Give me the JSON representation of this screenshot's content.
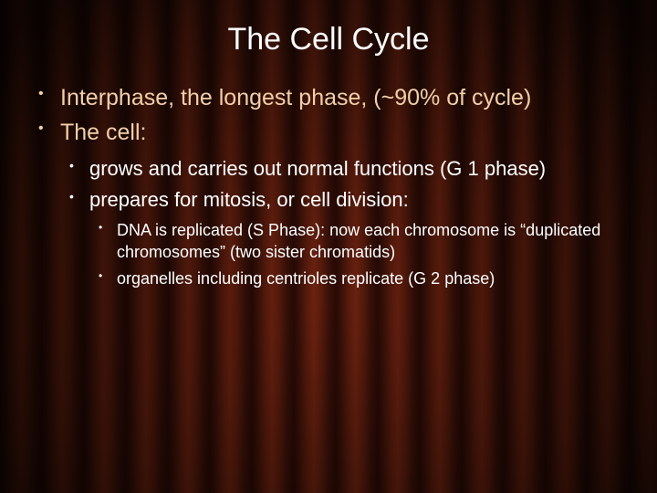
{
  "title": "The Cell Cycle",
  "colors": {
    "title_color": "#ffffff",
    "level1_color": "#f2cfa8",
    "level2_color": "#ffffff",
    "level3_color": "#ffffff",
    "curtain_dark": "#2a0a05",
    "curtain_light": "#6f2210"
  },
  "typography": {
    "title_fontsize": 34,
    "level1_fontsize": 25,
    "level2_fontsize": 22,
    "level3_fontsize": 18,
    "font_family": "Verdana"
  },
  "bullets": {
    "l1": [
      "Interphase, the longest phase, (~90% of cycle)",
      "The cell:"
    ],
    "l2": [
      "grows and carries out normal functions (G 1 phase)",
      "prepares for mitosis, or cell division:"
    ],
    "l3": [
      "DNA is replicated (S Phase): now each chromosome is “duplicated chromosomes” (two sister chromatids)",
      "organelles including centrioles replicate (G 2 phase)"
    ]
  }
}
